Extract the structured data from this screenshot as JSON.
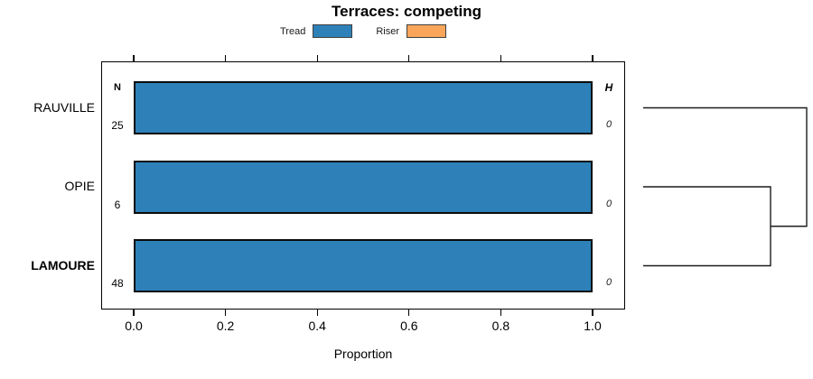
{
  "chart_data": {
    "type": "bar",
    "orientation": "horizontal",
    "stacked": true,
    "title": "Terraces: competing",
    "xlabel": "Proportion",
    "xlim": [
      0,
      1.08
    ],
    "xticks": [
      "0.0",
      "0.2",
      "0.4",
      "0.6",
      "0.8",
      "1.0"
    ],
    "xtick_values": [
      0,
      0.2,
      0.4,
      0.6,
      0.8,
      1.0
    ],
    "grid": false,
    "legend_position": "top-center",
    "legend": [
      {
        "label": "Tread",
        "color": "#2e81b8"
      },
      {
        "label": "Riser",
        "color": "#f9a65a"
      }
    ],
    "categories": [
      "RAUVILLE",
      "OPIE",
      "LAMOURE"
    ],
    "series": [
      {
        "name": "Tread",
        "values": [
          1.0,
          1.0,
          1.0
        ]
      },
      {
        "name": "Riser",
        "values": [
          0.0,
          0.0,
          0.0
        ]
      }
    ],
    "rows": [
      {
        "label": "RAUVILLE",
        "bold": false,
        "n": "25",
        "h": "0",
        "tread": 1.0,
        "riser": 0.0
      },
      {
        "label": "OPIE",
        "bold": false,
        "n": "6",
        "h": "0",
        "tread": 1.0,
        "riser": 0.0
      },
      {
        "label": "LAMOURE",
        "bold": true,
        "n": "48",
        "h": "0",
        "tread": 1.0,
        "riser": 0.0
      }
    ],
    "column_headers": {
      "n": "N",
      "h": "H"
    },
    "colors": {
      "bar_fill": "#2e81b8",
      "bar_border": "#0b0b0b",
      "axis": "#000000",
      "dendrogram_line": "#1c1c1c"
    },
    "dendrogram": {
      "side": "right",
      "merges": [
        {
          "members": [
            "OPIE",
            "LAMOURE"
          ],
          "height": 0
        },
        {
          "members": [
            "RAUVILLE",
            "[OPIE,LAMOURE]"
          ],
          "height": 0
        }
      ]
    }
  }
}
